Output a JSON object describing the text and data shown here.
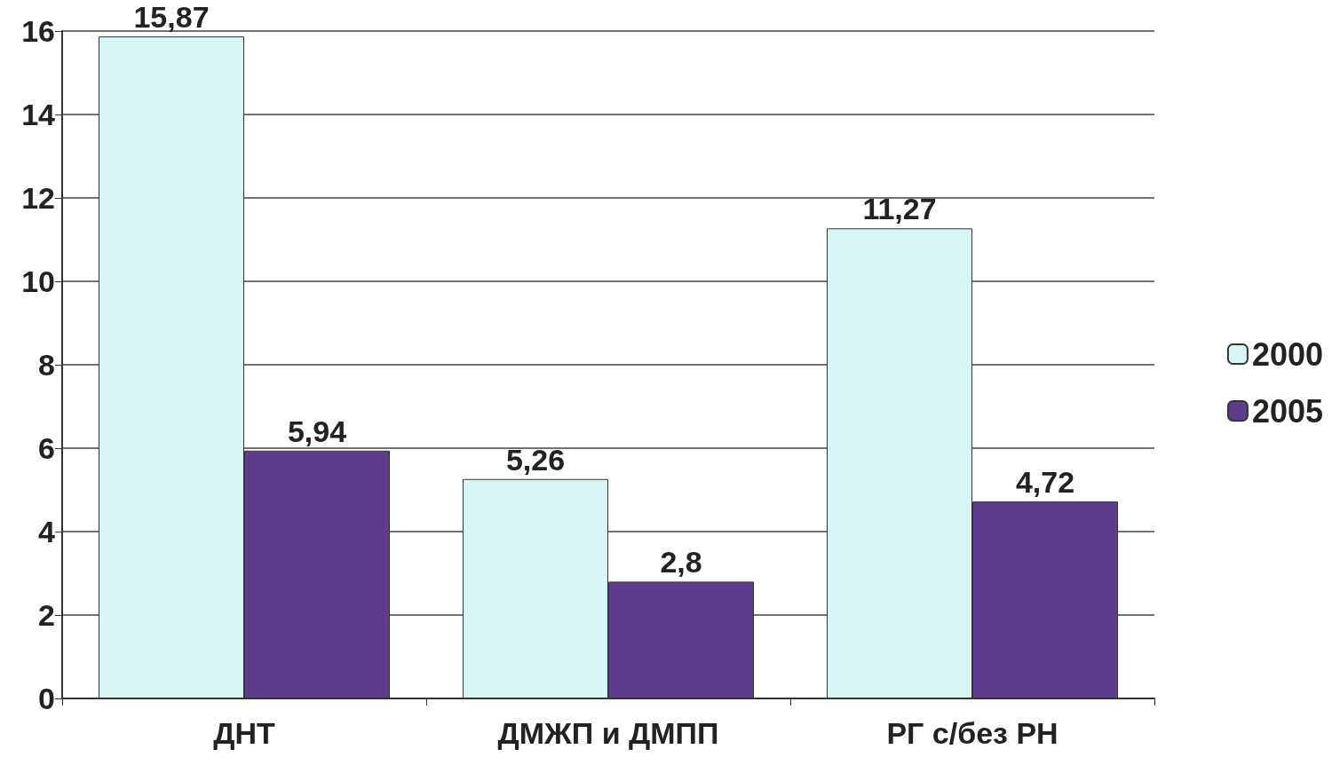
{
  "chart_data": {
    "type": "bar",
    "categories": [
      "ДНТ",
      "ДМЖП и ДМПП",
      "РГ с/без РН"
    ],
    "series": [
      {
        "name": "2000",
        "color": "#d6f6f6",
        "values": [
          15.87,
          5.26,
          11.27
        ],
        "value_labels": [
          "15,87",
          "5,26",
          "11,27"
        ]
      },
      {
        "name": "2005",
        "color": "#5e3d8e",
        "values": [
          5.94,
          2.8,
          4.72
        ],
        "value_labels": [
          "5,94",
          "2,8",
          "4,72"
        ]
      }
    ],
    "ylim": [
      0,
      16
    ],
    "yticks": [
      0,
      2,
      4,
      6,
      8,
      10,
      12,
      14,
      16
    ],
    "grid": "y",
    "legend": "right"
  }
}
